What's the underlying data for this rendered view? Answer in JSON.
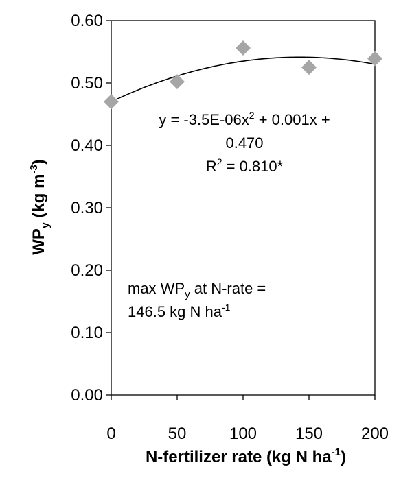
{
  "chart_data": {
    "type": "scatter",
    "x": [
      0,
      50,
      100,
      150,
      200
    ],
    "y": [
      0.47,
      0.502,
      0.556,
      0.525,
      0.539
    ],
    "xlim": [
      0,
      200
    ],
    "ylim": [
      0.0,
      0.6
    ],
    "x_ticks": [
      "0",
      "50",
      "100",
      "150",
      "200"
    ],
    "y_ticks": [
      "0.00",
      "0.10",
      "0.20",
      "0.30",
      "0.40",
      "0.50",
      "0.60"
    ],
    "xlabel": {
      "main": "N-fertilizer rate (kg N ha",
      "sup": "-1",
      "tail": ")"
    },
    "ylabel": {
      "main": "WP",
      "sub": "y",
      "mid": " (kg m",
      "sup": "-3",
      "tail": ")"
    },
    "marker_color": "#a6a6a6",
    "trend_color": "#000000",
    "trendline": {
      "type": "polynomial",
      "coefficients": {
        "a": -3.5e-06,
        "b": 0.001,
        "c": 0.47
      },
      "eq_line1": {
        "pre": "y = -3.5E-06x",
        "sup": "2",
        "post": " + 0.001x +"
      },
      "eq_line2": "0.470",
      "r2": {
        "pre": "R",
        "sup": "2",
        "post": " = 0.810*"
      }
    },
    "annotation": {
      "line1": {
        "pre": "max WP",
        "sub": "y",
        "post": " at N-rate ="
      },
      "line2": {
        "pre": "146.5 kg N ha",
        "sup": "-1"
      }
    },
    "grid": false,
    "legend": "none"
  }
}
